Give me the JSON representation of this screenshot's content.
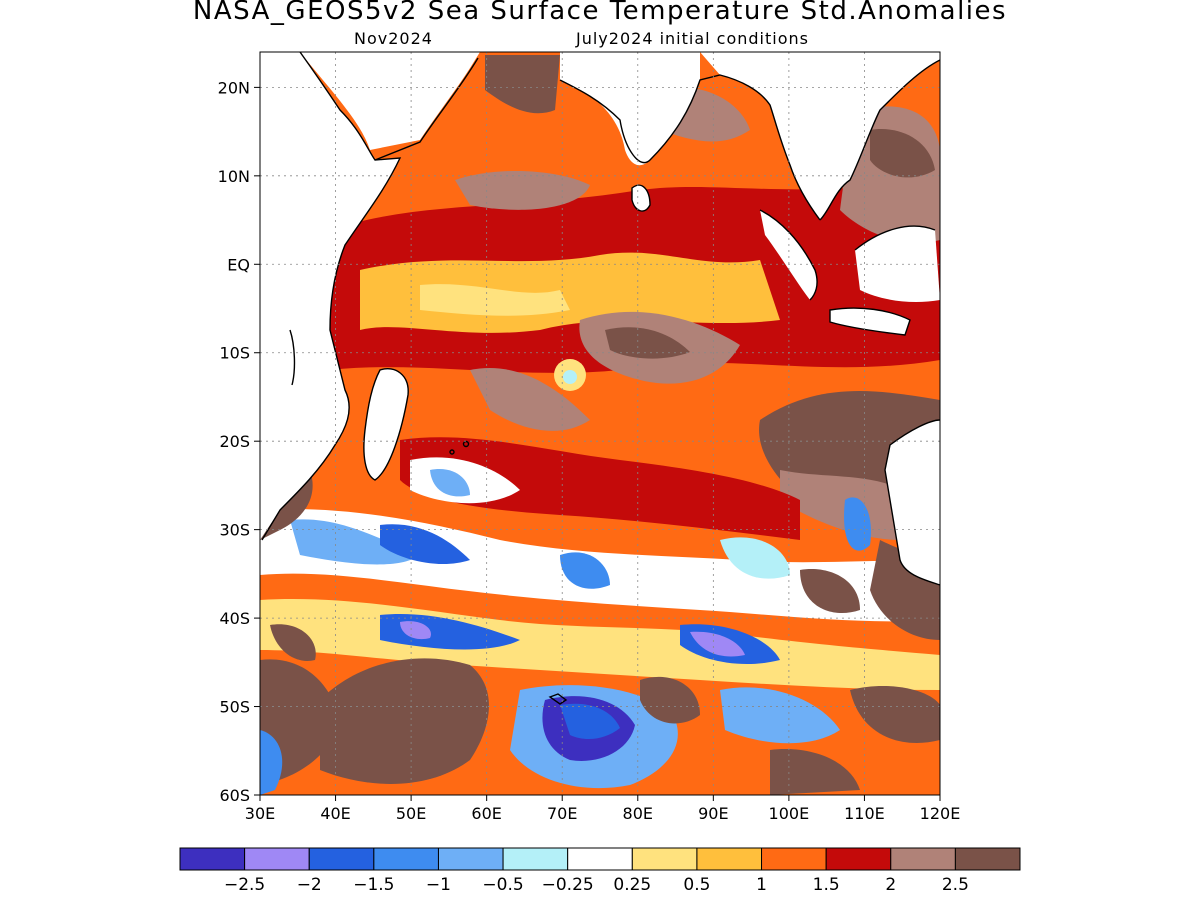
{
  "header": {
    "title": "NASA_GEOS5v2 Sea Surface Temperature Std.Anomalies",
    "valid_month": "Nov2024",
    "initial_conditions": "July2024 initial conditions"
  },
  "map": {
    "lon_range": [
      30,
      120
    ],
    "lat_range": [
      -60,
      24
    ],
    "lat_ticks": [
      {
        "value": 20,
        "label": "20N"
      },
      {
        "value": 10,
        "label": "10N"
      },
      {
        "value": 0,
        "label": "EQ"
      },
      {
        "value": -10,
        "label": "10S"
      },
      {
        "value": -20,
        "label": "20S"
      },
      {
        "value": -30,
        "label": "30S"
      },
      {
        "value": -40,
        "label": "40S"
      },
      {
        "value": -50,
        "label": "50S"
      },
      {
        "value": -60,
        "label": "60S"
      }
    ],
    "lon_ticks": [
      {
        "value": 30,
        "label": "30E"
      },
      {
        "value": 40,
        "label": "40E"
      },
      {
        "value": 50,
        "label": "50E"
      },
      {
        "value": 60,
        "label": "60E"
      },
      {
        "value": 70,
        "label": "70E"
      },
      {
        "value": 80,
        "label": "80E"
      },
      {
        "value": 90,
        "label": "90E"
      },
      {
        "value": 100,
        "label": "100E"
      },
      {
        "value": 110,
        "label": "110E"
      },
      {
        "value": 120,
        "label": "120E"
      }
    ],
    "gridlines": true
  },
  "colorbar": {
    "labels": [
      "-2.5",
      "-2",
      "-1.5",
      "-1",
      "-0.5",
      "-0.25",
      "0.25",
      "0.5",
      "1",
      "1.5",
      "2",
      "2.5"
    ],
    "colors": [
      "#3d2fbf",
      "#9f88f5",
      "#2461e0",
      "#3e8cf0",
      "#6eaff6",
      "#b4f0f8",
      "#ffffff",
      "#ffe27e",
      "#ffbf3c",
      "#ff6a14",
      "#c40a0a",
      "#b08278",
      "#7a5248"
    ],
    "land_color": "#ffffff"
  }
}
